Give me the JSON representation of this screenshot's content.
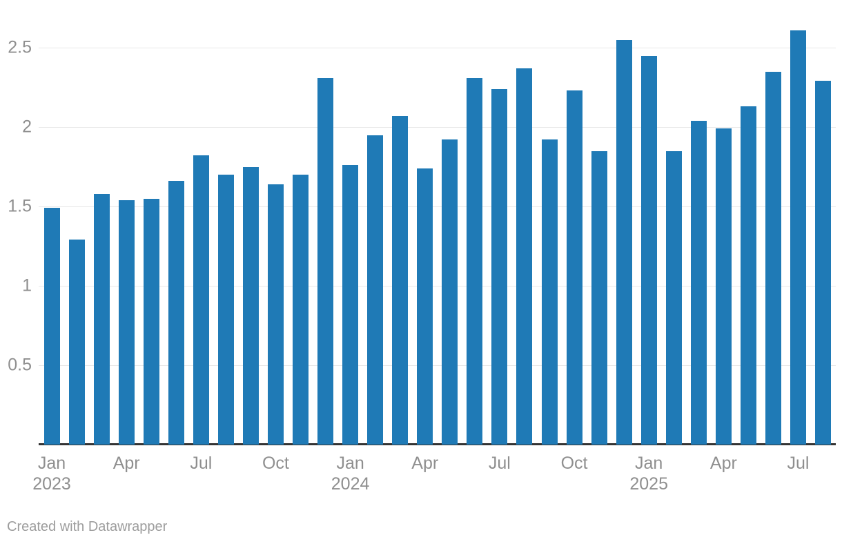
{
  "chart": {
    "footer": "Created with Datawrapper",
    "bar_color": "#1f7ab6",
    "grid_color": "#e8e8e8",
    "baseline_color": "#333333",
    "tick_label_color": "#8f8f8f",
    "footer_color": "#9c9c9c"
  },
  "chart_data": {
    "type": "bar",
    "title": "",
    "xlabel": "",
    "ylabel": "",
    "x": [
      "Jan 2023",
      "Feb 2023",
      "Mar 2023",
      "Apr 2023",
      "May 2023",
      "Jun 2023",
      "Jul 2023",
      "Aug 2023",
      "Sep 2023",
      "Oct 2023",
      "Nov 2023",
      "Dec 2023",
      "Jan 2024",
      "Feb 2024",
      "Mar 2024",
      "Apr 2024",
      "May 2024",
      "Jun 2024",
      "Jul 2024",
      "Aug 2024",
      "Sep 2024",
      "Oct 2024",
      "Nov 2024",
      "Dec 2024",
      "Jan 2025",
      "Feb 2025",
      "Mar 2025",
      "Apr 2025",
      "May 2025",
      "Jun 2025",
      "Jul 2025",
      "Aug 2025"
    ],
    "values": [
      1.49,
      1.29,
      1.58,
      1.54,
      1.55,
      1.66,
      1.82,
      1.7,
      1.75,
      1.64,
      1.7,
      2.31,
      1.76,
      1.95,
      2.07,
      1.74,
      1.92,
      2.31,
      2.24,
      2.37,
      1.92,
      2.23,
      1.85,
      2.55,
      2.45,
      1.85,
      2.04,
      1.99,
      2.13,
      2.35,
      2.61,
      2.29
    ],
    "ylim": [
      0,
      2.8
    ],
    "y_ticks": [
      "0.5",
      "1",
      "1.5",
      "2",
      "2.5"
    ],
    "x_ticks": [
      {
        "index": 0,
        "label": "Jan",
        "sublabel": "2023"
      },
      {
        "index": 3,
        "label": "Apr",
        "sublabel": ""
      },
      {
        "index": 6,
        "label": "Jul",
        "sublabel": ""
      },
      {
        "index": 9,
        "label": "Oct",
        "sublabel": ""
      },
      {
        "index": 12,
        "label": "Jan",
        "sublabel": "2024"
      },
      {
        "index": 15,
        "label": "Apr",
        "sublabel": ""
      },
      {
        "index": 18,
        "label": "Jul",
        "sublabel": ""
      },
      {
        "index": 21,
        "label": "Oct",
        "sublabel": ""
      },
      {
        "index": 24,
        "label": "Jan",
        "sublabel": "2025"
      },
      {
        "index": 27,
        "label": "Apr",
        "sublabel": ""
      },
      {
        "index": 30,
        "label": "Jul",
        "sublabel": ""
      }
    ],
    "legend": "none",
    "grid": "horizontal"
  }
}
